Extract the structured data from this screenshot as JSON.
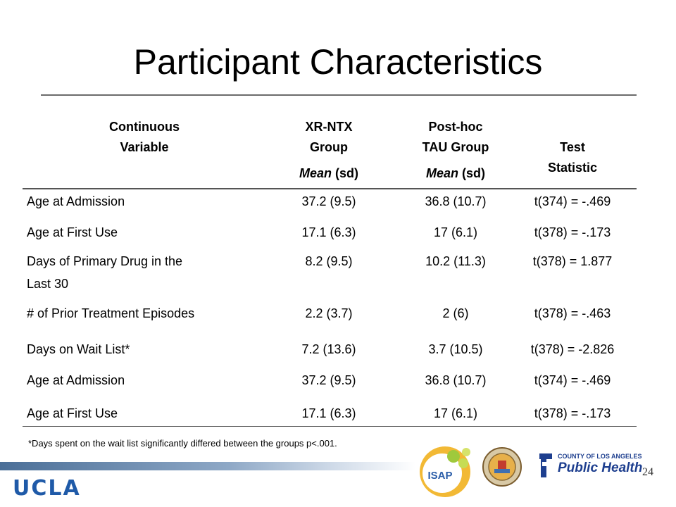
{
  "slide_title": "Participant Characteristics",
  "headers": {
    "variable": [
      "Continuous",
      "Variable"
    ],
    "xr": [
      "XR-NTX",
      "Group"
    ],
    "tau": [
      "Post-hoc",
      "TAU Group"
    ],
    "stat": [
      "Test",
      "Statistic"
    ],
    "mean_label": "Mean",
    "sd_label": " (sd)"
  },
  "rows": [
    {
      "name": "Age at Admission",
      "xr": "37.2 (9.5)",
      "tau": "36.8 (10.7)",
      "stat": "t(374) = -.469"
    },
    {
      "name": "Age at First Use",
      "xr": "17.1 (6.3)",
      "tau": "17 (6.1)",
      "stat": "t(378) = -.173"
    },
    {
      "name": "Days of Primary Drug in the",
      "name2": "Last 30",
      "xr": "8.2 (9.5)",
      "tau": "10.2 (11.3)",
      "stat": "t(378) = 1.877"
    },
    {
      "name": "# of Prior Treatment Episodes",
      "xr": "2.2 (3.7)",
      "tau": "2 (6)",
      "stat": "t(378) = -.463"
    },
    {
      "name": "Days on Wait List*",
      "xr": "7.2 (13.6)",
      "tau": "3.7 (10.5)",
      "stat": "t(378) = -2.826"
    },
    {
      "name": "Age at Admission",
      "xr": "37.2 (9.5)",
      "tau": "36.8 (10.7)",
      "stat": "t(374) = -.469"
    },
    {
      "name": "Age at First Use",
      "xr": "17.1 (6.3)",
      "tau": "17 (6.1)",
      "stat": "t(378) = -.173"
    }
  ],
  "footnote": "*Days spent on the wait list significantly differed between the groups p<.001.",
  "footer": {
    "ucla": "UCLA",
    "isap": "ISAP",
    "county_line": "COUNTY OF LOS ANGELES",
    "public_health": "Public Health",
    "page_number": "24"
  },
  "colors": {
    "ucla_blue": "#1f5aa8",
    "ph_blue": "#1e3f8f"
  }
}
